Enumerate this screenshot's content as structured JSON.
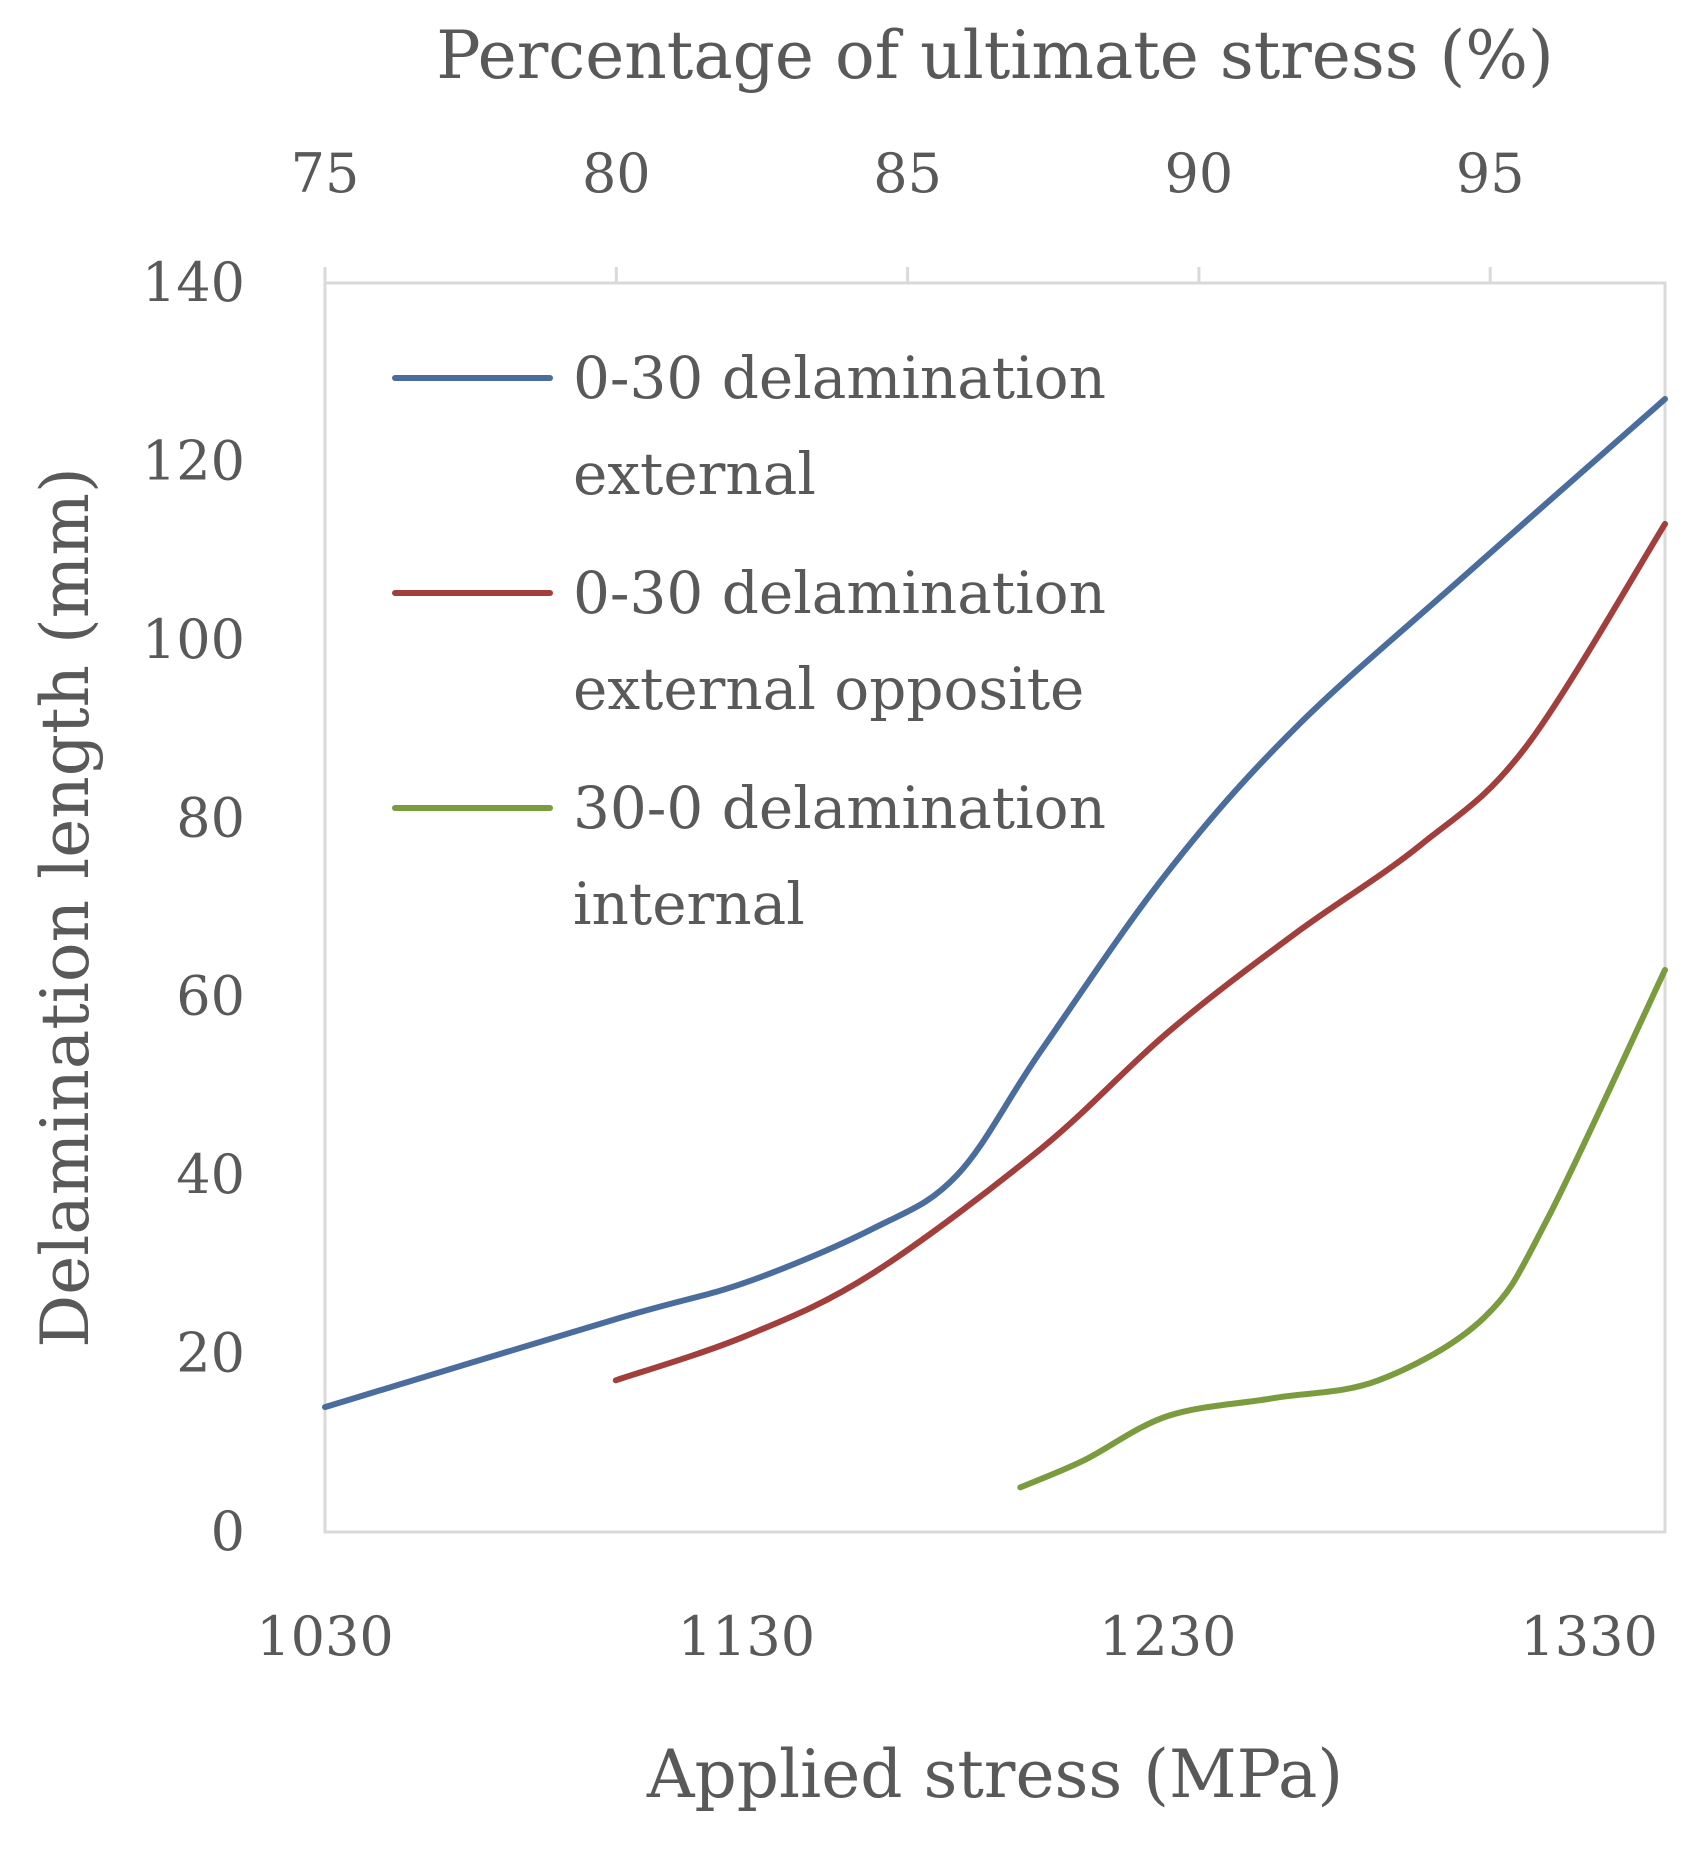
{
  "chart_data": {
    "type": "line",
    "title": "",
    "xlabel": "Applied stress (MPa)",
    "ylabel": "Delamination length (mm)",
    "x2label": "Percentage of ultimate stress (%)",
    "xlim": [
      1030,
      1348
    ],
    "ylim": [
      0,
      140
    ],
    "x2lim": [
      75,
      98
    ],
    "xticks": [
      1030,
      1130,
      1230,
      1330
    ],
    "yticks": [
      0,
      20,
      40,
      60,
      80,
      100,
      120,
      140
    ],
    "x2ticks": [
      75,
      80,
      85,
      90,
      95
    ],
    "grid": false,
    "legend_position": "top-left",
    "series": [
      {
        "name": "0-30 delamination external",
        "legend_lines": [
          "0-30 delamination",
          "external"
        ],
        "color": "#4a6d9e",
        "x": [
          1030,
          1100,
          1130,
          1160,
          1180,
          1200,
          1230,
          1260,
          1300,
          1348
        ],
        "y": [
          14,
          24,
          28,
          34,
          40,
          54,
          74,
          90,
          107,
          127
        ]
      },
      {
        "name": "0-30 delamination external opposite",
        "legend_lines": [
          "0-30 delamination",
          "external opposite"
        ],
        "color": "#a23e3c",
        "x": [
          1099,
          1130,
          1160,
          1200,
          1230,
          1260,
          1290,
          1315,
          1348
        ],
        "y": [
          17,
          22,
          29,
          43,
          56,
          67,
          77,
          88,
          113
        ]
      },
      {
        "name": "30-0 delamination internal",
        "legend_lines": [
          "30-0 delamination",
          "internal"
        ],
        "color": "#7b9b3f",
        "x": [
          1195,
          1210,
          1230,
          1255,
          1280,
          1305,
          1320,
          1348
        ],
        "y": [
          5,
          8,
          13,
          15,
          17,
          24,
          35,
          63
        ]
      }
    ]
  }
}
